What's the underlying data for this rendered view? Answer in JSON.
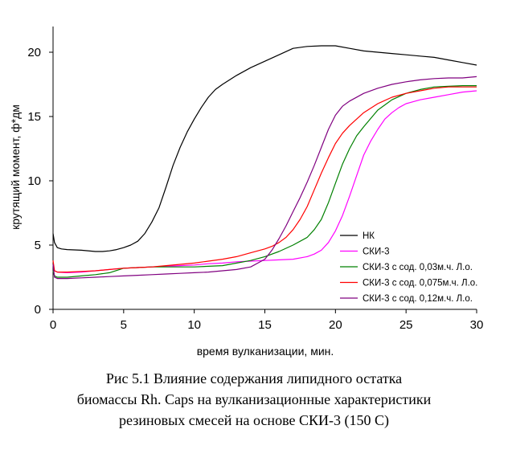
{
  "chart_data": {
    "type": "line",
    "title": "",
    "xlabel": "время вулканизации, мин.",
    "ylabel": "крутящий момент, ф*дм",
    "xlim": [
      0,
      30
    ],
    "ylim": [
      0,
      22
    ],
    "xticks": [
      0,
      5,
      10,
      15,
      20,
      25,
      30
    ],
    "yticks": [
      0,
      5,
      10,
      15,
      20
    ],
    "grid": false,
    "legend_position": "right-bottom",
    "series": [
      {
        "name": "НК",
        "color": "#000000",
        "x": [
          0,
          0.1,
          0.3,
          0.6,
          1,
          2,
          3,
          3.5,
          4,
          4.5,
          5,
          5.5,
          6,
          6.5,
          7,
          7.5,
          8,
          8.5,
          9,
          9.5,
          10,
          10.5,
          11,
          11.5,
          12,
          13,
          14,
          15,
          16,
          17,
          18,
          19,
          20,
          21,
          22,
          23,
          24,
          25,
          26,
          27,
          28,
          29,
          30
        ],
        "y": [
          5.9,
          5.2,
          4.8,
          4.7,
          4.65,
          4.6,
          4.5,
          4.5,
          4.55,
          4.65,
          4.8,
          5.0,
          5.3,
          5.9,
          6.8,
          7.9,
          9.5,
          11.2,
          12.6,
          13.8,
          14.8,
          15.7,
          16.5,
          17.1,
          17.5,
          18.2,
          18.8,
          19.3,
          19.8,
          20.3,
          20.45,
          20.5,
          20.5,
          20.3,
          20.1,
          20.0,
          19.9,
          19.8,
          19.7,
          19.6,
          19.4,
          19.2,
          19.0
        ]
      },
      {
        "name": "СКИ-3",
        "color": "#ff00ff",
        "x": [
          0,
          0.1,
          0.3,
          1,
          2,
          3,
          4,
          5,
          6,
          7,
          8,
          9,
          10,
          11,
          12,
          13,
          14,
          15,
          16,
          17,
          18,
          18.5,
          19,
          19.5,
          20,
          20.5,
          21,
          21.5,
          22,
          22.5,
          23,
          23.5,
          24,
          24.5,
          25,
          26,
          27,
          28,
          29,
          30
        ],
        "y": [
          3.5,
          3.0,
          2.9,
          2.85,
          2.9,
          3.0,
          3.1,
          3.2,
          3.25,
          3.3,
          3.35,
          3.4,
          3.45,
          3.55,
          3.6,
          3.7,
          3.75,
          3.8,
          3.85,
          3.9,
          4.1,
          4.3,
          4.6,
          5.2,
          6.1,
          7.3,
          8.8,
          10.4,
          12.0,
          13.1,
          14.0,
          14.8,
          15.3,
          15.7,
          16.0,
          16.3,
          16.5,
          16.7,
          16.9,
          17.0
        ]
      },
      {
        "name": "СКИ-3 с сод. 0,03м.ч. Л.о.",
        "color": "#008000",
        "x": [
          0,
          0.1,
          0.3,
          1,
          2,
          3,
          4,
          5,
          6,
          7,
          8,
          9,
          10,
          11,
          12,
          13,
          14,
          15,
          16,
          17,
          18,
          18.5,
          19,
          19.5,
          20,
          20.5,
          21,
          21.5,
          22,
          23,
          24,
          25,
          26,
          27,
          28,
          29,
          30
        ],
        "y": [
          3.0,
          2.6,
          2.5,
          2.5,
          2.6,
          2.7,
          2.85,
          3.2,
          3.25,
          3.3,
          3.3,
          3.3,
          3.3,
          3.35,
          3.4,
          3.6,
          3.8,
          4.1,
          4.5,
          5.0,
          5.6,
          6.2,
          7.0,
          8.3,
          9.8,
          11.3,
          12.5,
          13.5,
          14.2,
          15.5,
          16.3,
          16.8,
          17.1,
          17.3,
          17.35,
          17.4,
          17.4
        ]
      },
      {
        "name": "СКИ-3 с сод. 0,075м.ч. Л.о.",
        "color": "#ff0000",
        "x": [
          0,
          0.1,
          0.3,
          1,
          2,
          3,
          4,
          5,
          6,
          7,
          8,
          9,
          10,
          11,
          12,
          13,
          14,
          15,
          15.5,
          16,
          16.5,
          17,
          17.5,
          18,
          18.5,
          19,
          19.5,
          20,
          20.5,
          21,
          22,
          23,
          24,
          25,
          26,
          27,
          28,
          29,
          30
        ],
        "y": [
          3.8,
          3.0,
          2.9,
          2.9,
          2.95,
          3.0,
          3.1,
          3.2,
          3.25,
          3.3,
          3.4,
          3.5,
          3.6,
          3.75,
          3.9,
          4.1,
          4.4,
          4.7,
          4.9,
          5.2,
          5.6,
          6.2,
          7.0,
          8.0,
          9.3,
          10.6,
          11.8,
          12.9,
          13.7,
          14.3,
          15.3,
          16.0,
          16.5,
          16.8,
          17.0,
          17.2,
          17.3,
          17.3,
          17.3
        ]
      },
      {
        "name": "СКИ-3 с сод. 0,12м.ч. Л.о.",
        "color": "#800080",
        "x": [
          0,
          0.1,
          0.3,
          1,
          2,
          3,
          4,
          5,
          6,
          7,
          8,
          9,
          10,
          11,
          12,
          13,
          14,
          15,
          15.5,
          16,
          16.5,
          17,
          17.5,
          18,
          18.5,
          19,
          19.5,
          20,
          20.5,
          21,
          22,
          23,
          24,
          25,
          26,
          27,
          28,
          29,
          30
        ],
        "y": [
          3.5,
          2.5,
          2.4,
          2.4,
          2.45,
          2.5,
          2.55,
          2.6,
          2.65,
          2.7,
          2.75,
          2.8,
          2.85,
          2.9,
          3.0,
          3.1,
          3.3,
          3.9,
          4.6,
          5.5,
          6.5,
          7.6,
          8.7,
          9.9,
          11.2,
          12.6,
          14.0,
          15.1,
          15.8,
          16.2,
          16.8,
          17.2,
          17.5,
          17.7,
          17.85,
          17.95,
          18.0,
          18.0,
          18.1
        ]
      }
    ]
  },
  "caption": {
    "line1": "Рис 5.1 Влияние содержания липидного остатка",
    "line2": "биомассы Rh. Caps на вулканизационные характеристики",
    "line3": "резиновых смесей на основе СКИ-3 (150 С)"
  }
}
